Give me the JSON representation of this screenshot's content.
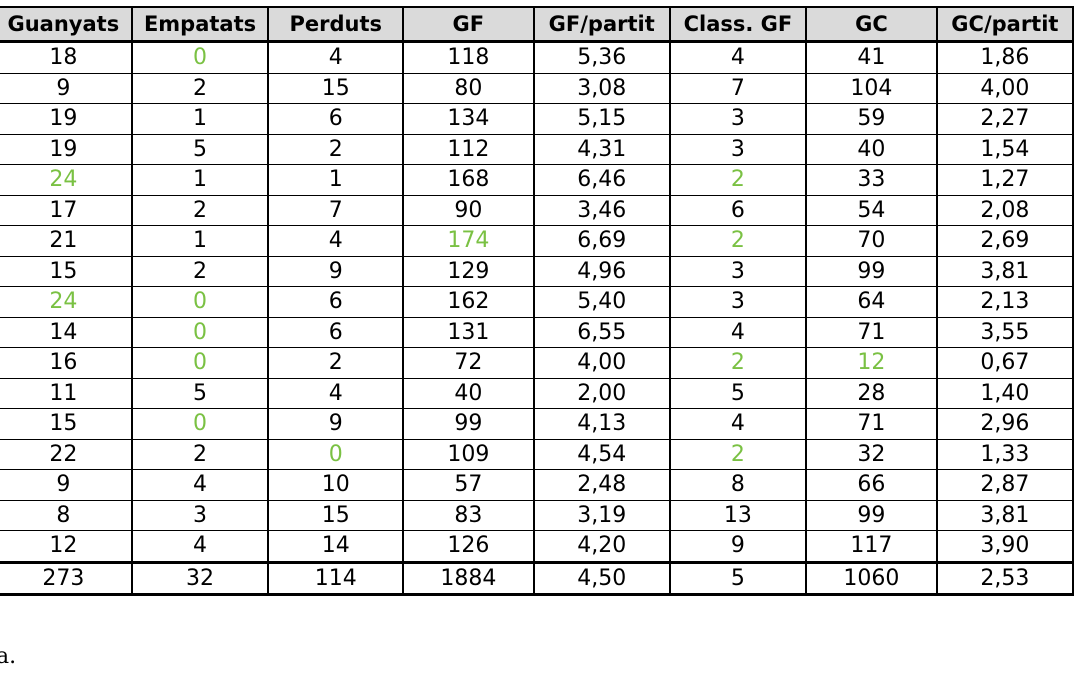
{
  "table": {
    "headers": [
      "Guanyats",
      "Empatats",
      "Perduts",
      "GF",
      "GF/partit",
      "Class. GF",
      "GC",
      "GC/partit"
    ],
    "rows": [
      [
        "18",
        "0",
        "4",
        "118",
        "5,36",
        "4",
        "41",
        "1,86"
      ],
      [
        "9",
        "2",
        "15",
        "80",
        "3,08",
        "7",
        "104",
        "4,00"
      ],
      [
        "19",
        "1",
        "6",
        "134",
        "5,15",
        "3",
        "59",
        "2,27"
      ],
      [
        "19",
        "5",
        "2",
        "112",
        "4,31",
        "3",
        "40",
        "1,54"
      ],
      [
        "24",
        "1",
        "1",
        "168",
        "6,46",
        "2",
        "33",
        "1,27"
      ],
      [
        "17",
        "2",
        "7",
        "90",
        "3,46",
        "6",
        "54",
        "2,08"
      ],
      [
        "21",
        "1",
        "4",
        "174",
        "6,69",
        "2",
        "70",
        "2,69"
      ],
      [
        "15",
        "2",
        "9",
        "129",
        "4,96",
        "3",
        "99",
        "3,81"
      ],
      [
        "24",
        "0",
        "6",
        "162",
        "5,40",
        "3",
        "64",
        "2,13"
      ],
      [
        "14",
        "0",
        "6",
        "131",
        "6,55",
        "4",
        "71",
        "3,55"
      ],
      [
        "16",
        "0",
        "2",
        "72",
        "4,00",
        "2",
        "12",
        "0,67"
      ],
      [
        "11",
        "5",
        "4",
        "40",
        "2,00",
        "5",
        "28",
        "1,40"
      ],
      [
        "15",
        "0",
        "9",
        "99",
        "4,13",
        "4",
        "71",
        "2,96"
      ],
      [
        "22",
        "2",
        "0",
        "109",
        "4,54",
        "2",
        "32",
        "1,33"
      ],
      [
        "9",
        "4",
        "10",
        "57",
        "2,48",
        "8",
        "66",
        "2,87"
      ],
      [
        "8",
        "3",
        "15",
        "83",
        "3,19",
        "13",
        "99",
        "3,81"
      ],
      [
        "12",
        "4",
        "14",
        "126",
        "4,20",
        "9",
        "117",
        "3,90"
      ]
    ],
    "total": [
      "273",
      "32",
      "114",
      "1884",
      "4,50",
      "5",
      "1060",
      "2,53"
    ],
    "highlighted_cells": [
      [
        0,
        1
      ],
      [
        4,
        0
      ],
      [
        4,
        5
      ],
      [
        6,
        3
      ],
      [
        6,
        5
      ],
      [
        8,
        0
      ],
      [
        8,
        1
      ],
      [
        9,
        1
      ],
      [
        10,
        1
      ],
      [
        10,
        5
      ],
      [
        10,
        6
      ],
      [
        12,
        1
      ],
      [
        13,
        2
      ],
      [
        13,
        5
      ]
    ],
    "highlight_color": "#7ac143"
  },
  "footnote": "a."
}
